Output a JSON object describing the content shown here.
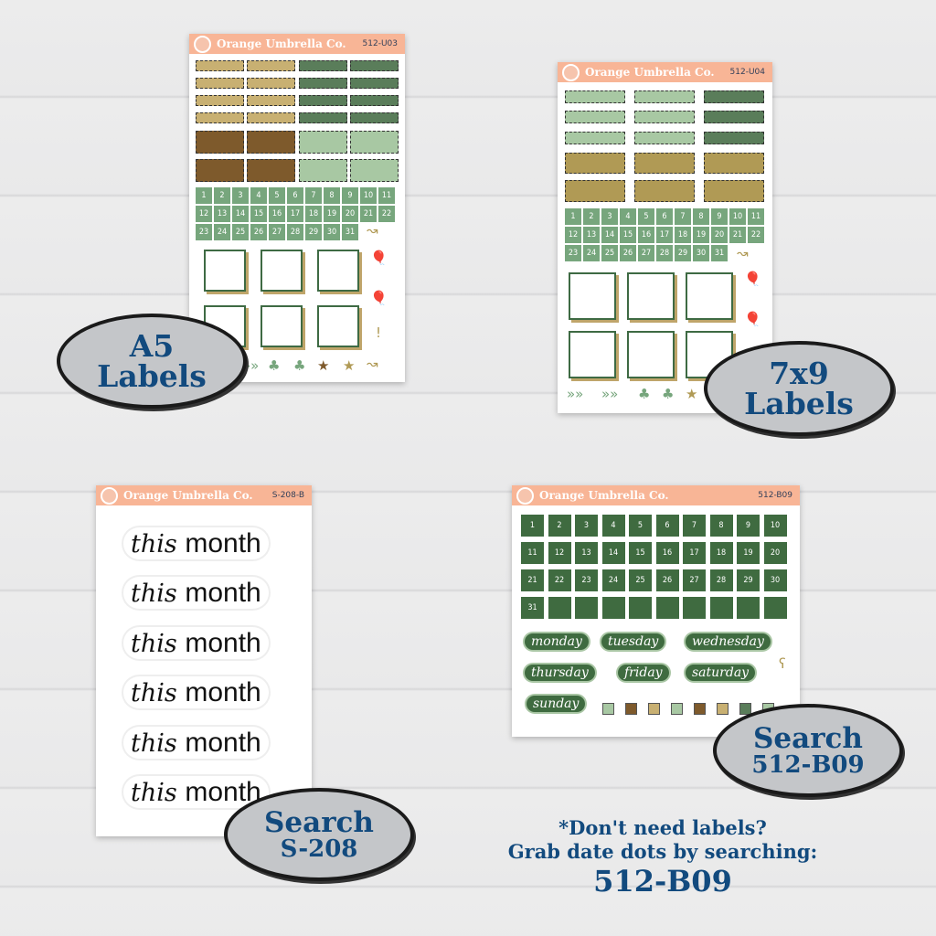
{
  "brand": "Orange Umbrella Co.",
  "sheets": {
    "a5": {
      "code": "512-U03"
    },
    "s7x9": {
      "code": "512-U04"
    },
    "s208": {
      "code": "S-208-B",
      "words": [
        "this",
        "month"
      ]
    },
    "b09": {
      "code": "512-B09",
      "days": [
        "monday",
        "tuesday",
        "wednesday",
        "thursday",
        "friday",
        "saturday",
        "sunday"
      ]
    }
  },
  "callouts": {
    "a5": [
      "A5",
      "Labels"
    ],
    "s7x9": [
      "7x9",
      "Labels"
    ],
    "b09": [
      "Search",
      "512-B09"
    ],
    "s208": [
      "Search",
      "S-208"
    ]
  },
  "note": {
    "line1": "*Don't need labels?",
    "line2": "Grab date dots by searching:",
    "code": "512-B09"
  },
  "colors": {
    "peach": "#f8b596",
    "sage": "#77a67d",
    "darkgreen": "#3f6b40",
    "midgreen": "#5a7d5a",
    "lightsage": "#a8c8a3",
    "tan": "#c8b072",
    "brown": "#7e5a2c",
    "mustard": "#b09a55",
    "navy": "#124a7e"
  }
}
